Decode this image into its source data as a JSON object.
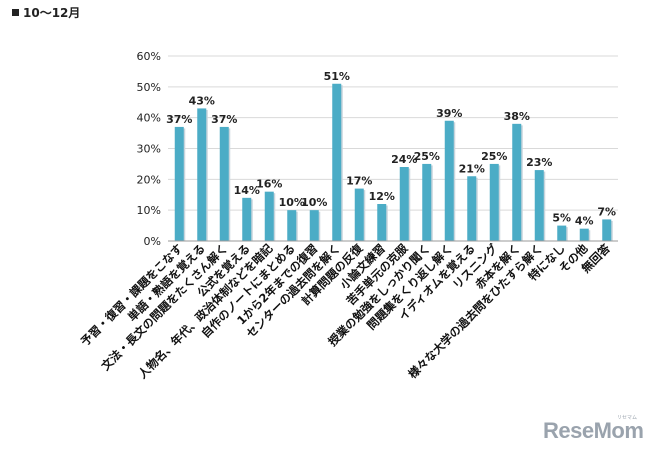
{
  "header": {
    "period": "10～12月"
  },
  "watermark": {
    "text": "ReseMom",
    "kana": "リセマム"
  },
  "chart_data": {
    "type": "bar",
    "categories": [
      "予習・復習・課題をこなす",
      "単語・熟語を覚える",
      "文法・長文の問題をたくさん解く",
      "公式を覚える",
      "人物名、年代、政治体制などを暗記",
      "自作のノートにまとめる",
      "1から2年までの復習",
      "センターの過去問を解く",
      "計算問題の反復",
      "小論文練習",
      "苦手単元の克服",
      "授業の勉強をしっかり聞く",
      "問題集をくり返し解く",
      "イディオムを覚える",
      "リスニング",
      "赤本を解く",
      "様々な大学の過去問をひたすら解く",
      "特になし",
      "その他",
      "無回答"
    ],
    "values": [
      37,
      43,
      37,
      14,
      16,
      10,
      10,
      51,
      17,
      12,
      24,
      25,
      39,
      21,
      25,
      38,
      23,
      5,
      4,
      7
    ],
    "value_labels": [
      "37%",
      "43%",
      "37%",
      "14%",
      "16%",
      "10%",
      "10%",
      "51%",
      "17%",
      "12%",
      "24%",
      "25%",
      "39%",
      "21%",
      "25%",
      "38%",
      "23%",
      "5%",
      "4%",
      "7%"
    ],
    "yticks": [
      "0%",
      "10%",
      "20%",
      "30%",
      "40%",
      "50%",
      "60%"
    ],
    "ylim": [
      0,
      60
    ],
    "bar_color": "#4bacc6",
    "grid": true,
    "legend": "none"
  }
}
